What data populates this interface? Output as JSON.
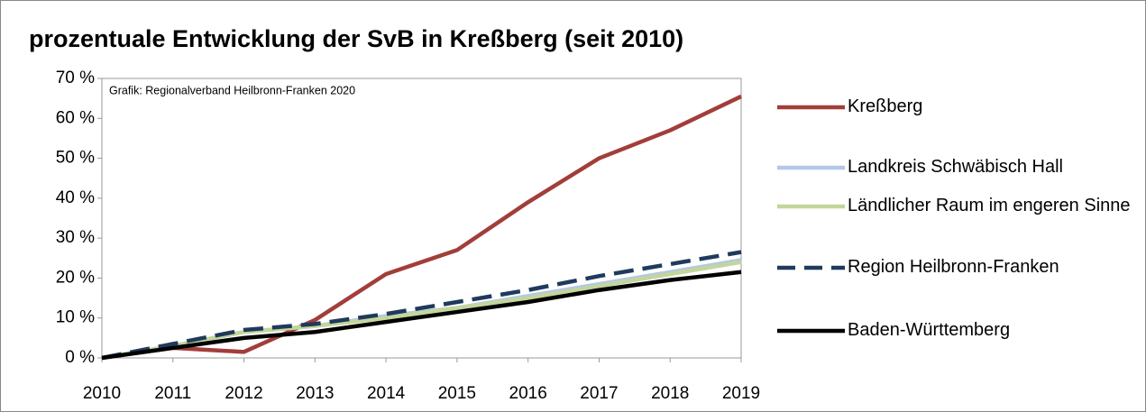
{
  "chart_data": {
    "type": "line",
    "title": "prozentuale Entwicklung der SvB in Kreßberg (seit 2010)",
    "annotation": "Grafik: Regionalverband Heilbronn-Franken 2020",
    "x": [
      2010,
      2011,
      2012,
      2013,
      2014,
      2015,
      2016,
      2017,
      2018,
      2019
    ],
    "xlim": [
      2010,
      2019
    ],
    "xticks": [
      2010,
      2011,
      2012,
      2013,
      2014,
      2015,
      2016,
      2017,
      2018,
      2019
    ],
    "ylim": [
      0,
      70
    ],
    "yticks": [
      {
        "value": 0,
        "label": "0 %"
      },
      {
        "value": 10,
        "label": "10 %"
      },
      {
        "value": 20,
        "label": "20 %"
      },
      {
        "value": 30,
        "label": "30 %"
      },
      {
        "value": 40,
        "label": "40 %"
      },
      {
        "value": 50,
        "label": "50 %"
      },
      {
        "value": 60,
        "label": "60 %"
      },
      {
        "value": 70,
        "label": "70 %"
      }
    ],
    "grid": false,
    "legend": "right",
    "series": [
      {
        "name": "Kreßberg",
        "color": "#a23e3a",
        "values": [
          0,
          2.5,
          1.5,
          9.5,
          21,
          27,
          39,
          50,
          57,
          65.5
        ]
      },
      {
        "name": "Landkreis Schwäbisch Hall",
        "color": "#b4c7e7",
        "values": [
          0,
          3,
          6.5,
          8,
          10.5,
          12.5,
          15.5,
          18.5,
          21.5,
          24.5
        ]
      },
      {
        "name": "Ländlicher Raum im engeren Sinne",
        "color": "#c3d69b",
        "values": [
          0,
          3,
          6.5,
          8,
          10,
          12.5,
          15,
          18,
          21,
          24
        ]
      },
      {
        "name": "Region Heilbronn-Franken",
        "color": "#1f3a5c",
        "dashed": true,
        "values": [
          0,
          3.5,
          7,
          8.5,
          11,
          14,
          17,
          20.5,
          23.5,
          26.5
        ]
      },
      {
        "name": "Baden-Württemberg",
        "color": "#000000",
        "values": [
          0,
          2.5,
          5,
          6.5,
          9,
          11.5,
          14,
          17,
          19.5,
          21.5
        ]
      }
    ]
  }
}
